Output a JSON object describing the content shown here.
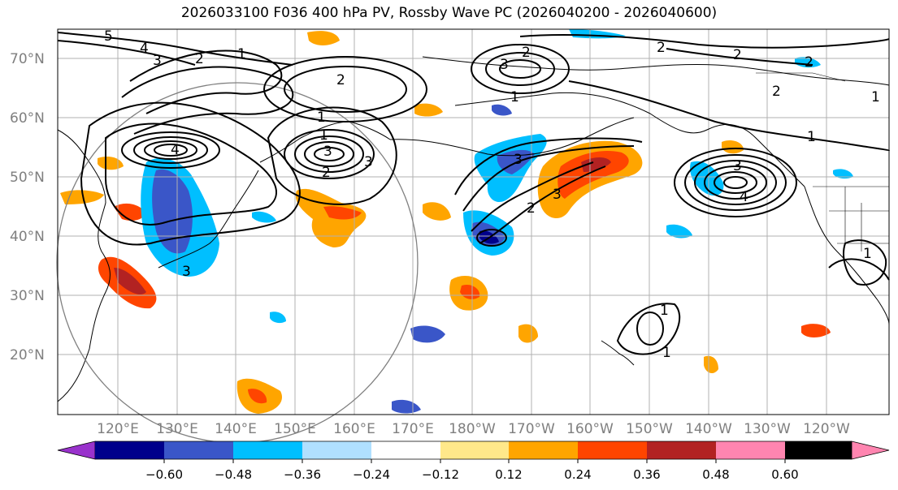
{
  "title": "2026033100 F036 400 hPa PV, Rossby Wave PC (2026040200 - 2026040600)",
  "lat_labels": [
    "70°N",
    "60°N",
    "50°N",
    "40°N",
    "30°N",
    "20°N"
  ],
  "lon_labels": [
    "120°E",
    "130°E",
    "140°E",
    "150°E",
    "160°E",
    "170°E",
    "180°W",
    "170°W",
    "160°W",
    "150°W",
    "140°W",
    "130°W",
    "120°W"
  ],
  "colorbar": {
    "ticks": [
      "−0.60",
      "−0.48",
      "−0.36",
      "−0.24",
      "−0.12",
      "0.12",
      "0.24",
      "0.36",
      "0.48",
      "0.60"
    ],
    "colors": [
      "#9932cc",
      "#00008b",
      "#3a56c8",
      "#00bfff",
      "#b0e0ff",
      "#ffffff",
      "#ffe88a",
      "#ffa500",
      "#ff4500",
      "#b22222",
      "#ff85b0"
    ]
  },
  "contour_labels": [
    "5",
    "4",
    "3",
    "2",
    "1",
    "2",
    "3",
    "1",
    "2",
    "3",
    "2",
    "2",
    "2",
    "3",
    "1",
    "4",
    "3",
    "3",
    "1",
    "1",
    "1",
    "2",
    "3",
    "4",
    "2",
    "1",
    "1",
    "2",
    "3",
    "1"
  ]
}
